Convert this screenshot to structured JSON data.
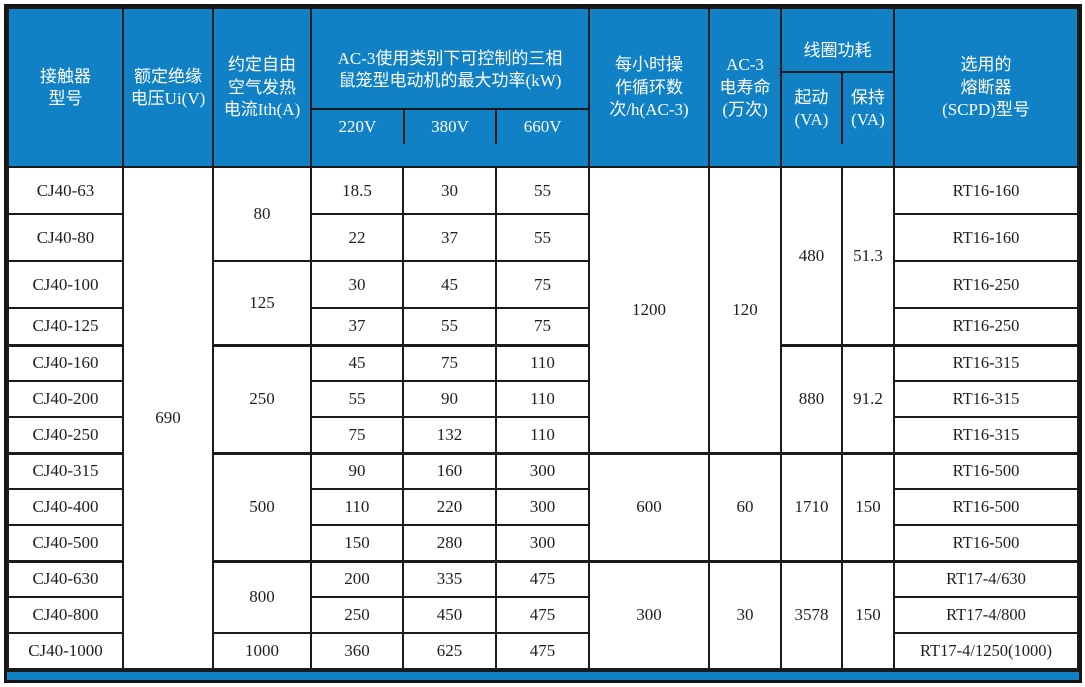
{
  "accent_color": "#1181c6",
  "table": {
    "header": {
      "model": "接触器\n型号",
      "ui": "额定绝缘\n电压Ui(V)",
      "ith": "约定自由\n空气发热\n电流Ith(A)",
      "power": "AC-3使用类别下可控制的三相\n鼠笼型电动机的最大功率(kW)",
      "power_subs": [
        "220V",
        "380V",
        "660V"
      ],
      "cycles": "每小时操\n作循环数\n次/h(AC-3)",
      "life": "AC-3\n电寿命\n(万次)",
      "coil": "线圈功耗",
      "coil_start": "起动\n(VA)",
      "coil_hold": "保持\n(VA)",
      "fuse": "选用的\n熔断器\n(SCPD)型号"
    },
    "rows": [
      {
        "model": "CJ40-63",
        "p220": "18.5",
        "p380": "30",
        "p660": "55",
        "fuse": "RT16-160"
      },
      {
        "model": "CJ40-80",
        "p220": "22",
        "p380": "37",
        "p660": "55",
        "fuse": "RT16-160"
      },
      {
        "model": "CJ40-100",
        "p220": "30",
        "p380": "45",
        "p660": "75",
        "fuse": "RT16-250"
      },
      {
        "model": "CJ40-125",
        "p220": "37",
        "p380": "55",
        "p660": "75",
        "fuse": "RT16-250"
      },
      {
        "model": "CJ40-160",
        "p220": "45",
        "p380": "75",
        "p660": "110",
        "fuse": "RT16-315"
      },
      {
        "model": "CJ40-200",
        "p220": "55",
        "p380": "90",
        "p660": "110",
        "fuse": "RT16-315"
      },
      {
        "model": "CJ40-250",
        "p220": "75",
        "p380": "132",
        "p660": "110",
        "fuse": "RT16-315"
      },
      {
        "model": "CJ40-315",
        "p220": "90",
        "p380": "160",
        "p660": "300",
        "fuse": "RT16-500"
      },
      {
        "model": "CJ40-400",
        "p220": "110",
        "p380": "220",
        "p660": "300",
        "fuse": "RT16-500"
      },
      {
        "model": "CJ40-500",
        "p220": "150",
        "p380": "280",
        "p660": "300",
        "fuse": "RT16-500"
      },
      {
        "model": "CJ40-630",
        "p220": "200",
        "p380": "335",
        "p660": "475",
        "fuse": "RT17-4/630"
      },
      {
        "model": "CJ40-800",
        "p220": "250",
        "p380": "450",
        "p660": "475",
        "fuse": "RT17-4/800"
      },
      {
        "model": "CJ40-1000",
        "p220": "360",
        "p380": "625",
        "p660": "475",
        "fuse": "RT17-4/1250(1000)"
      }
    ],
    "merges": {
      "ui": [
        {
          "row": 0,
          "span": 13,
          "val": "690"
        }
      ],
      "ith": [
        {
          "row": 0,
          "span": 2,
          "val": "80"
        },
        {
          "row": 2,
          "span": 2,
          "val": "125"
        },
        {
          "row": 4,
          "span": 3,
          "val": "250"
        },
        {
          "row": 7,
          "span": 3,
          "val": "500"
        },
        {
          "row": 10,
          "span": 2,
          "val": "800"
        },
        {
          "row": 12,
          "span": 1,
          "val": "1000"
        }
      ],
      "cycles": [
        {
          "row": 0,
          "span": 7,
          "val": "1200"
        },
        {
          "row": 7,
          "span": 3,
          "val": "600"
        },
        {
          "row": 10,
          "span": 3,
          "val": "300"
        }
      ],
      "life": [
        {
          "row": 0,
          "span": 7,
          "val": "120"
        },
        {
          "row": 7,
          "span": 3,
          "val": "60"
        },
        {
          "row": 10,
          "span": 3,
          "val": "30"
        }
      ],
      "start": [
        {
          "row": 0,
          "span": 4,
          "val": "480"
        },
        {
          "row": 4,
          "span": 3,
          "val": "880"
        },
        {
          "row": 7,
          "span": 3,
          "val": "1710"
        },
        {
          "row": 10,
          "span": 3,
          "val": "3578"
        }
      ],
      "hold": [
        {
          "row": 0,
          "span": 4,
          "val": "51.3"
        },
        {
          "row": 4,
          "span": 3,
          "val": "91.2"
        },
        {
          "row": 7,
          "span": 3,
          "val": "150"
        },
        {
          "row": 10,
          "span": 3,
          "val": "150"
        }
      ]
    }
  }
}
